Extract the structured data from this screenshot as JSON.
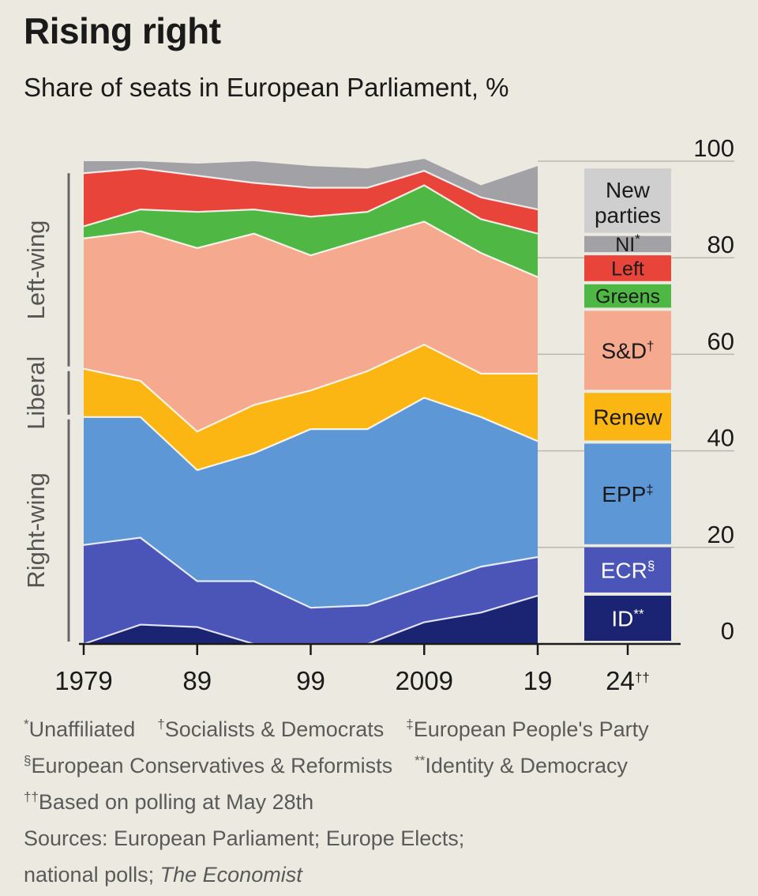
{
  "title": "Rising right",
  "subtitle": "Share of seats in European Parliament, %",
  "chart_data": {
    "type": "area",
    "stacked": true,
    "x": [
      1979,
      1984,
      1989,
      1994,
      1999,
      2004,
      2009,
      2014,
      2019
    ],
    "x_tick_labels": [
      {
        "x": 1979,
        "label": "1979"
      },
      {
        "x": 1989,
        "label": "89"
      },
      {
        "x": 1999,
        "label": "99"
      },
      {
        "x": 2009,
        "label": "2009"
      },
      {
        "x": 2019,
        "label": "19"
      }
    ],
    "projection_label": "24",
    "projection_label_mark": "††",
    "ylim": [
      0,
      100
    ],
    "y_ticks": [
      0,
      20,
      40,
      60,
      80,
      100
    ],
    "grid": true,
    "series": [
      {
        "name": "ID",
        "mark": "**",
        "color": "#1b2472",
        "values": [
          0,
          4,
          3.5,
          0,
          0,
          0,
          4.5,
          6.5,
          10
        ]
      },
      {
        "name": "ECR",
        "mark": "§",
        "color": "#4b55b8",
        "values": [
          20.5,
          18,
          9.5,
          13,
          7.5,
          8,
          7.5,
          9.5,
          8
        ]
      },
      {
        "name": "EPP",
        "mark": "‡",
        "color": "#5d97d6",
        "values": [
          26.5,
          25,
          23,
          26.5,
          37,
          36.5,
          39,
          31,
          24
        ]
      },
      {
        "name": "Renew",
        "mark": "",
        "color": "#fbb614",
        "values": [
          10,
          7.5,
          8,
          10,
          8,
          12,
          11,
          9,
          14
        ]
      },
      {
        "name": "S&D",
        "mark": "†",
        "color": "#f5a98e",
        "values": [
          27,
          31,
          38,
          35.5,
          28,
          27.5,
          25.5,
          25,
          20
        ]
      },
      {
        "name": "Greens",
        "mark": "",
        "color": "#4fb743",
        "values": [
          2.5,
          4.5,
          7.5,
          5,
          8,
          5.5,
          7.5,
          7,
          9
        ]
      },
      {
        "name": "Left",
        "mark": "",
        "color": "#e8443a",
        "values": [
          11,
          8.5,
          7.5,
          5.5,
          6,
          5,
          3,
          4.5,
          5
        ]
      },
      {
        "name": "NI",
        "mark": "*",
        "color": "#a1a1a6",
        "values": [
          2.5,
          1.5,
          2.5,
          4.5,
          4.5,
          4,
          2.5,
          2.5,
          9
        ]
      }
    ],
    "projection_2024": [
      {
        "name": "ID",
        "mark": "**",
        "value": 10
      },
      {
        "name": "ECR",
        "mark": "§",
        "value": 10
      },
      {
        "name": "EPP",
        "mark": "‡",
        "value": 21.5
      },
      {
        "name": "Renew",
        "mark": "",
        "value": 10.5
      },
      {
        "name": "S&D",
        "mark": "†",
        "value": 17
      },
      {
        "name": "Greens",
        "mark": "",
        "value": 5.5
      },
      {
        "name": "Left",
        "mark": "",
        "value": 6
      },
      {
        "name": "NI",
        "mark": "*",
        "value": 4
      },
      {
        "name": "New parties",
        "mark": "",
        "value": 14,
        "color": "#cfcfcf"
      }
    ],
    "groups": [
      {
        "label": "Right-wing",
        "from": 0,
        "to": 47
      },
      {
        "label": "Liberal",
        "from": 47,
        "to": 57
      },
      {
        "label": "Left-wing",
        "from": 57,
        "to": 98
      }
    ]
  },
  "footnotes": {
    "line1": [
      {
        "mark": "*",
        "text": "Unaffiliated"
      },
      {
        "mark": "†",
        "text": "Socialists & Democrats"
      },
      {
        "mark": "‡",
        "text": "European People's Party"
      }
    ],
    "line2": [
      {
        "mark": "§",
        "text": "European Conservatives & Reformists"
      },
      {
        "mark": "**",
        "text": "Identity & Democracy"
      }
    ],
    "line3": {
      "mark": "††",
      "text": "Based on polling at May 28th"
    },
    "sources_line1": "Sources: European Parliament; Europe Elects;",
    "sources_line2": "national polls; ",
    "sources_italic": "The Economist"
  }
}
